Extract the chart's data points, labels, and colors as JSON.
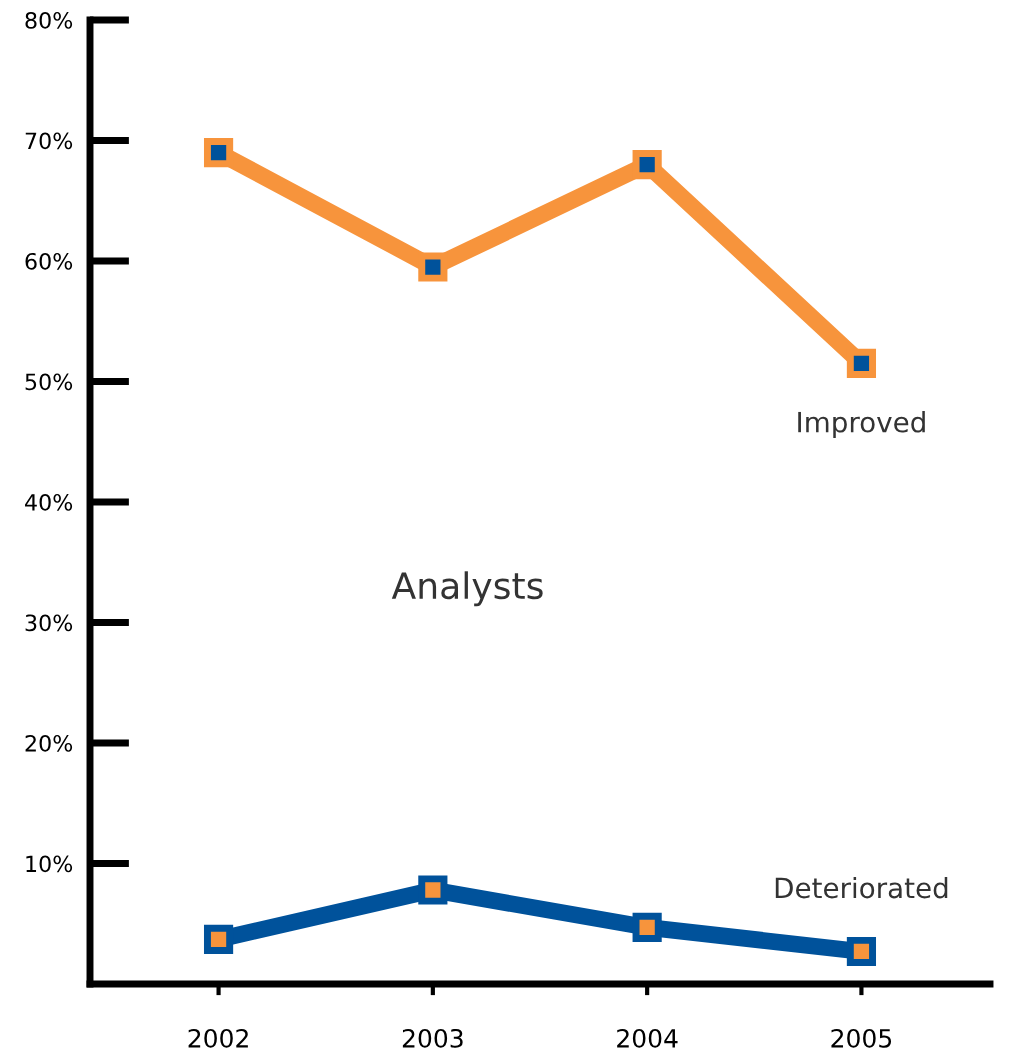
{
  "chart_data": {
    "type": "line",
    "categories": [
      "2002",
      "2003",
      "2004",
      "2005"
    ],
    "series": [
      {
        "name": "Improved",
        "color": "#f7943c",
        "values": [
          69,
          59.5,
          68,
          51.5
        ]
      },
      {
        "name": "Deteriorated",
        "color": "#00529b",
        "values": [
          3.7,
          7.8,
          4.7,
          2.7
        ]
      }
    ],
    "annotations": [
      {
        "text": "Analysts"
      }
    ],
    "ylim": [
      0,
      80
    ],
    "yticks": [
      {
        "value": 10,
        "label": "10%"
      },
      {
        "value": 20,
        "label": "20%"
      },
      {
        "value": 30,
        "label": "30%"
      },
      {
        "value": 40,
        "label": "40%"
      },
      {
        "value": 50,
        "label": "50%"
      },
      {
        "value": 60,
        "label": "60%"
      },
      {
        "value": 70,
        "label": "70%"
      },
      {
        "value": 80,
        "label": "80%"
      }
    ],
    "marker": "square",
    "line_style": "solid",
    "grid": false,
    "legend": false
  }
}
